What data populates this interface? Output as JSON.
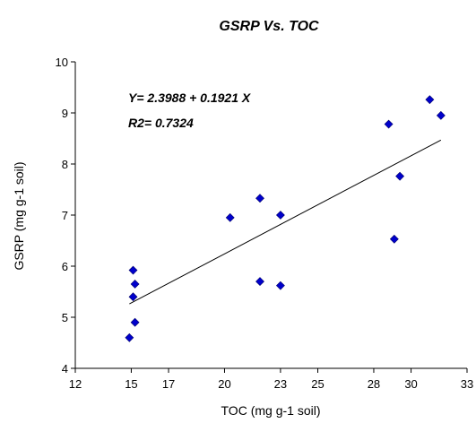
{
  "chart_data": {
    "type": "scatter",
    "title": "GSRP Vs. TOC",
    "xlabel": "TOC (mg g-1 soil)",
    "ylabel": "GSRP (mg g-1 soil)",
    "xlim": [
      12,
      33
    ],
    "ylim": [
      4,
      10
    ],
    "x_ticks": [
      12,
      15,
      17,
      20,
      23,
      25,
      28,
      30,
      33
    ],
    "y_ticks": [
      4,
      5,
      6,
      7,
      8,
      9,
      10
    ],
    "grid": false,
    "points": [
      {
        "x": 14.9,
        "y": 4.6
      },
      {
        "x": 15.2,
        "y": 4.9
      },
      {
        "x": 15.1,
        "y": 5.4
      },
      {
        "x": 15.2,
        "y": 5.65
      },
      {
        "x": 15.1,
        "y": 5.92
      },
      {
        "x": 20.3,
        "y": 6.95
      },
      {
        "x": 21.9,
        "y": 7.33
      },
      {
        "x": 21.9,
        "y": 5.7
      },
      {
        "x": 23.0,
        "y": 7.0
      },
      {
        "x": 23.0,
        "y": 5.62
      },
      {
        "x": 28.8,
        "y": 8.78
      },
      {
        "x": 29.1,
        "y": 6.53
      },
      {
        "x": 29.4,
        "y": 7.76
      },
      {
        "x": 31.0,
        "y": 9.26
      },
      {
        "x": 31.6,
        "y": 8.95
      }
    ],
    "point_color": "#0000cc",
    "trendline": {
      "intercept": 2.3988,
      "slope": 0.1921,
      "x_start": 14.9,
      "x_end": 31.6
    },
    "annotations": [
      "Y= 2.3988 + 0.1921 X",
      "R2= 0.7324"
    ]
  }
}
